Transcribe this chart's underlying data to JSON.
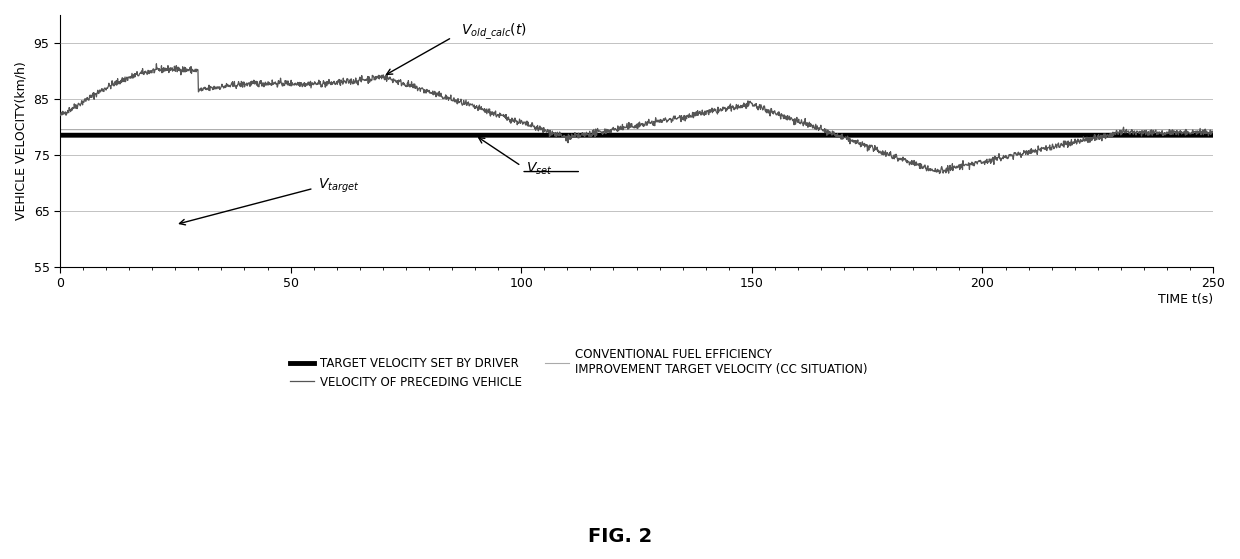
{
  "title": "FIG. 2",
  "xlabel": "TIME t(s)",
  "ylabel": "VEHICLE VELOCITY(km/h)",
  "xlim": [
    0,
    250
  ],
  "ylim": [
    55,
    100
  ],
  "yticks": [
    55,
    65,
    75,
    85,
    95
  ],
  "xticks": [
    0,
    50,
    100,
    150,
    200,
    250
  ],
  "v_set": 78.5,
  "v_target_start": 62,
  "background_color": "#ffffff",
  "line_color_preceding": "#555555",
  "line_color_set": "#000000",
  "line_color_vold": "#888888",
  "legend_items": [
    {
      "label": "TARGET VELOCITY SET BY DRIVER",
      "style": "thick_black"
    },
    {
      "label": "VELOCITY OF PRECEDING VEHICLE",
      "style": "thin_gray"
    },
    {
      "label": "CONVENTIONAL FUEL EFFICIENCY\nIMPROVEMENT TARGET VELOCITY (CC SITUATION)",
      "style": "thin_lightgray"
    }
  ]
}
